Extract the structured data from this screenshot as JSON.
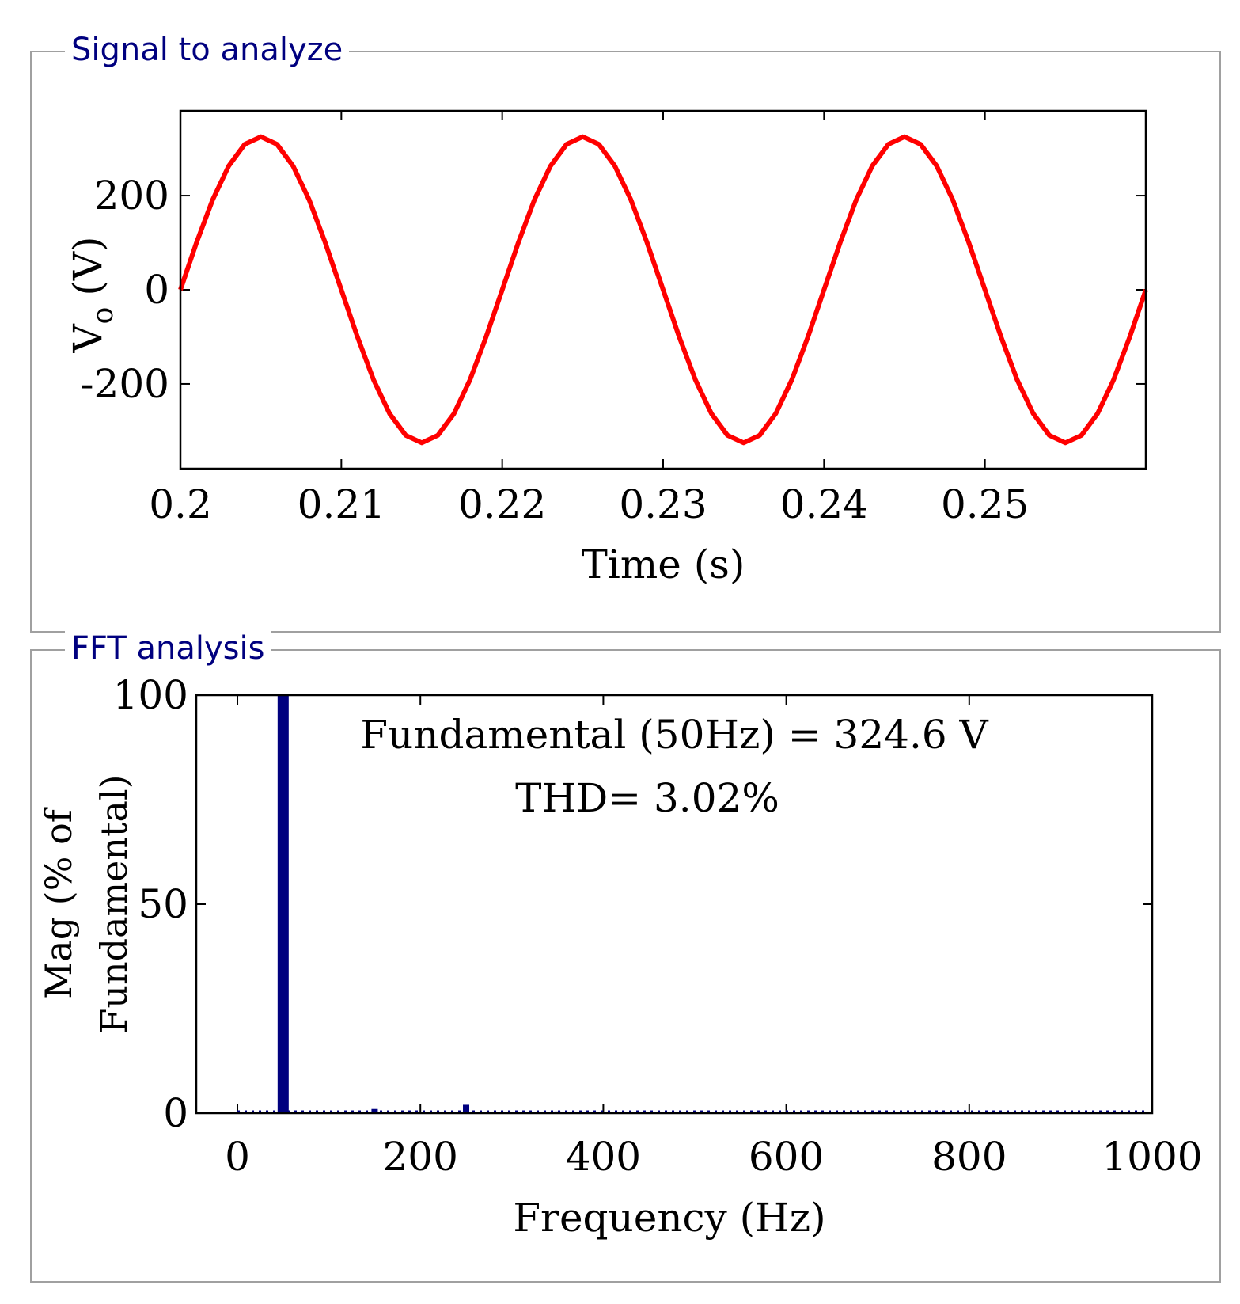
{
  "panels": {
    "signal_title": "Signal to analyze",
    "fft_title": "FFT analysis"
  },
  "chart_data": [
    {
      "type": "line",
      "title": "",
      "xlabel": "Time (s)",
      "ylabel": "V_o (V)",
      "ylabel_main": "V",
      "ylabel_sub": "o",
      "ylabel_unit": "(V)",
      "xlim": [
        0.2,
        0.26
      ],
      "ylim": [
        -380,
        380
      ],
      "xticks": [
        0.2,
        0.21,
        0.22,
        0.23,
        0.24,
        0.25
      ],
      "xtick_labels": [
        "0.2",
        "0.21",
        "0.22",
        "0.23",
        "0.24",
        "0.25"
      ],
      "yticks": [
        -200,
        0,
        200
      ],
      "ytick_labels": [
        "-200",
        "0",
        "200"
      ],
      "series": [
        {
          "name": "V_o",
          "color": "#ff0000",
          "x": [
            0.2,
            0.201,
            0.202,
            0.203,
            0.204,
            0.205,
            0.206,
            0.207,
            0.208,
            0.209,
            0.21,
            0.211,
            0.212,
            0.213,
            0.214,
            0.215,
            0.216,
            0.217,
            0.218,
            0.219,
            0.22,
            0.221,
            0.222,
            0.223,
            0.224,
            0.225,
            0.226,
            0.227,
            0.228,
            0.229,
            0.23,
            0.231,
            0.232,
            0.233,
            0.234,
            0.235,
            0.236,
            0.237,
            0.238,
            0.239,
            0.24,
            0.241,
            0.242,
            0.243,
            0.244,
            0.245,
            0.246,
            0.247,
            0.248,
            0.249,
            0.25,
            0.251,
            0.252,
            0.253,
            0.254,
            0.255,
            0.256,
            0.257,
            0.258,
            0.259,
            0.26
          ],
          "y": [
            0,
            100,
            191,
            263,
            309,
            325,
            309,
            263,
            191,
            100,
            0,
            -100,
            -191,
            -263,
            -309,
            -325,
            -309,
            -263,
            -191,
            -100,
            0,
            100,
            191,
            263,
            309,
            325,
            309,
            263,
            191,
            100,
            0,
            -100,
            -191,
            -263,
            -309,
            -325,
            -309,
            -263,
            -191,
            -100,
            0,
            100,
            191,
            263,
            309,
            325,
            309,
            263,
            191,
            100,
            0,
            -100,
            -191,
            -263,
            -309,
            -325,
            -309,
            -263,
            -191,
            -100,
            0
          ]
        }
      ]
    },
    {
      "type": "bar",
      "title": "",
      "xlabel": "Frequency (Hz)",
      "ylabel": "Mag (% of Fundamental)",
      "ylabel_line1": "Mag (% of",
      "ylabel_line2": "Fundamental)",
      "xlim": [
        -45,
        1000
      ],
      "ylim": [
        0,
        100
      ],
      "xticks": [
        0,
        200,
        400,
        600,
        800,
        1000
      ],
      "xtick_labels": [
        "0",
        "200",
        "400",
        "600",
        "800",
        "1000"
      ],
      "yticks": [
        0,
        50,
        100
      ],
      "ytick_labels": [
        "0",
        "50",
        "100"
      ],
      "bar_color": "#00007f",
      "bars": [
        {
          "freq": 50,
          "mag": 100
        },
        {
          "freq": 150,
          "mag": 1.0
        },
        {
          "freq": 250,
          "mag": 2.0
        },
        {
          "freq": 350,
          "mag": 0.4
        },
        {
          "freq": 450,
          "mag": 0.3
        },
        {
          "freq": 550,
          "mag": 0.3
        },
        {
          "freq": 650,
          "mag": 0.2
        }
      ],
      "annotations": {
        "fundamental": "Fundamental (50Hz) = 324.6 V",
        "thd": "THD= 3.02%"
      }
    }
  ]
}
